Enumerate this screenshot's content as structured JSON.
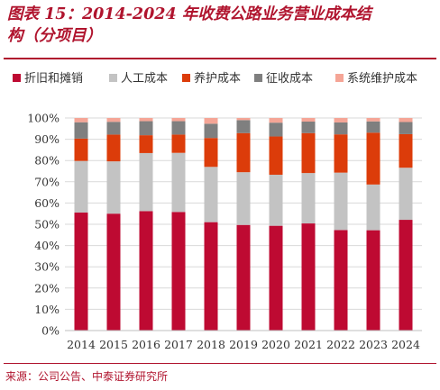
{
  "header": {
    "title_line1": "图表 15：2014-2024 年收费公路业务营业成本结",
    "title_line2": "构（分项目）"
  },
  "footer": {
    "source": "来源：公司公告、中泰证券研究所"
  },
  "colors": {
    "brand": "#b0142e",
    "grid": "#d9d9d9",
    "axis": "#bfbfbf"
  },
  "chart_data": {
    "type": "bar",
    "stacked": true,
    "percent": true,
    "categories": [
      "2014",
      "2015",
      "2016",
      "2017",
      "2018",
      "2019",
      "2020",
      "2021",
      "2022",
      "2023",
      "2024"
    ],
    "yticks": [
      "0%",
      "10%",
      "20%",
      "30%",
      "40%",
      "50%",
      "60%",
      "70%",
      "80%",
      "90%",
      "100%"
    ],
    "ylim": [
      0,
      100
    ],
    "grid": true,
    "legend_position": "top",
    "series": [
      {
        "name": "折旧和摊销",
        "color": "#be0a32",
        "values": [
          55.5,
          55.0,
          56.2,
          55.8,
          51.0,
          49.7,
          49.3,
          50.4,
          47.3,
          47.2,
          52.1
        ]
      },
      {
        "name": "人工成本",
        "color": "#c3c3c3",
        "values": [
          24.3,
          24.6,
          27.3,
          27.8,
          26.0,
          24.8,
          24.0,
          23.7,
          27.0,
          21.5,
          24.5
        ]
      },
      {
        "name": "养护成本",
        "color": "#dc3c0a",
        "values": [
          10.5,
          12.6,
          8.4,
          8.6,
          13.6,
          18.4,
          18.0,
          18.8,
          18.0,
          24.4,
          15.8
        ]
      },
      {
        "name": "征收成本",
        "color": "#7f7f7f",
        "values": [
          7.7,
          6.0,
          6.6,
          6.3,
          6.7,
          6.1,
          6.5,
          5.4,
          5.6,
          5.3,
          5.7
        ]
      },
      {
        "name": "系统维护成本",
        "color": "#f5a596",
        "values": [
          2.0,
          1.8,
          1.5,
          1.5,
          2.7,
          1.0,
          2.2,
          1.7,
          2.1,
          1.6,
          1.9
        ]
      }
    ]
  }
}
